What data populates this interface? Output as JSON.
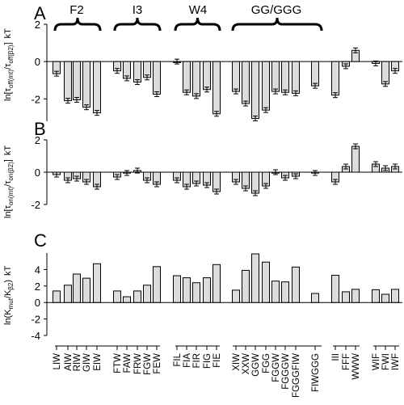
{
  "figure": {
    "panel_labels": [
      "A",
      "B",
      "C"
    ],
    "group_labels": [
      "F2",
      "I3",
      "W4",
      "GG/GGG"
    ],
    "ylabels": [
      {
        "main": "ln[τ",
        "sub1": "off(mt)",
        "mid": "/τ",
        "sub2": "off(β2)",
        "end": "]",
        "unit": "kT"
      },
      {
        "main": "ln[τ",
        "sub1": "on(mt)",
        "mid": "/τ",
        "sub2": "on(β2)",
        "end": "]",
        "unit": "kT"
      },
      {
        "main": "ln(K",
        "sub1": "mut",
        "mid": "/K",
        "sub2": "β2",
        "end": ")",
        "unit": "kT"
      }
    ]
  },
  "chart_data": [
    {
      "type": "bar",
      "panel": "A",
      "ylim": [
        -3.2,
        2
      ],
      "yticks": [
        -2,
        0,
        2
      ],
      "categories": [
        "LIW",
        "AIW",
        "RIW",
        "GIW",
        "EIW",
        "FTW",
        "FAW",
        "FRW",
        "FGW",
        "FEW",
        "FIL",
        "FIA",
        "FIR",
        "FIG",
        "FIE",
        "XIW",
        "XXW",
        "GGW",
        "FGG",
        "FGGW",
        "FGGGW",
        "FGGGFIW",
        "FIWGGG",
        "III",
        "FFF",
        "WWW",
        "WIF",
        "FWI",
        "IWF"
      ],
      "values": [
        -0.65,
        -2.1,
        -2.05,
        -2.45,
        -2.75,
        -0.5,
        -0.9,
        -1.1,
        -0.85,
        -1.75,
        0.0,
        -1.65,
        -1.85,
        -1.5,
        -2.8,
        -1.6,
        -2.25,
        -3.05,
        -2.6,
        -1.6,
        -1.65,
        -1.7,
        -1.3,
        -1.8,
        -0.25,
        0.6,
        -0.1,
        -1.2,
        -0.5
      ]
    },
    {
      "type": "bar",
      "panel": "B",
      "ylim": [
        -2,
        2
      ],
      "yticks": [
        -2,
        0,
        2
      ],
      "categories": [
        "LIW",
        "AIW",
        "RIW",
        "GIW",
        "EIW",
        "FTW",
        "FAW",
        "FRW",
        "FGW",
        "FEW",
        "FIL",
        "FIA",
        "FIR",
        "FIG",
        "FIE",
        "XIW",
        "XXW",
        "GGW",
        "FGG",
        "FGGW",
        "FGGGW",
        "FGGGFIW",
        "FIWGGG",
        "III",
        "FFF",
        "WWW",
        "WIF",
        "FWI",
        "IWF"
      ],
      "values": [
        -0.15,
        -0.5,
        -0.4,
        -0.6,
        -0.9,
        -0.3,
        -0.05,
        0.1,
        -0.5,
        -0.75,
        -0.5,
        -0.9,
        -0.7,
        -0.8,
        -1.2,
        -0.6,
        -1.0,
        -1.3,
        -0.85,
        0.0,
        -0.35,
        -0.25,
        -0.05,
        -0.6,
        0.35,
        1.6,
        0.5,
        0.25,
        0.35
      ]
    },
    {
      "type": "bar",
      "panel": "C",
      "ylim": [
        -4,
        6
      ],
      "yticks": [
        -4,
        -2,
        0,
        2,
        4
      ],
      "categories": [
        "LIW",
        "AIW",
        "RIW",
        "GIW",
        "EIW",
        "FTW",
        "FAW",
        "FRW",
        "FGW",
        "FEW",
        "FIL",
        "FIA",
        "FIR",
        "FIG",
        "FIE",
        "XIW",
        "XXW",
        "GGW",
        "FGG",
        "FGGW",
        "FGGGW",
        "FGGGFIW",
        "FIWGGG",
        "III",
        "FFF",
        "WWW",
        "WIF",
        "FWI",
        "IWF"
      ],
      "values": [
        1.4,
        2.1,
        3.45,
        2.95,
        4.7,
        1.4,
        0.7,
        1.4,
        2.1,
        4.35,
        3.25,
        3.0,
        2.4,
        3.0,
        4.6,
        1.5,
        3.9,
        5.9,
        4.9,
        2.6,
        2.5,
        4.3,
        1.1,
        3.3,
        1.3,
        1.6,
        1.55,
        1.0,
        1.6
      ]
    }
  ]
}
